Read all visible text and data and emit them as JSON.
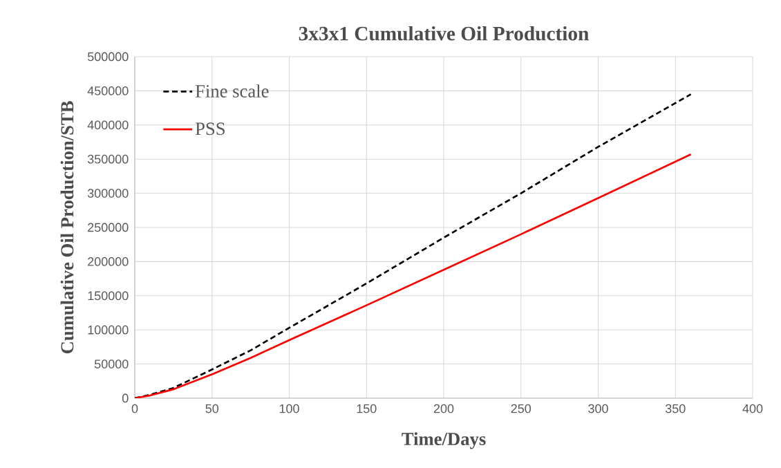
{
  "chart_data": {
    "type": "line",
    "title": "3x3x1 Cumulative Oil Production",
    "xlabel": "Time/Days",
    "ylabel": "Cumulative Oil Production/STB",
    "xlim": [
      0,
      400
    ],
    "xticks": [
      0,
      50,
      100,
      150,
      200,
      250,
      300,
      350,
      400
    ],
    "ylim": [
      0,
      500000
    ],
    "yticks": [
      0,
      50000,
      100000,
      150000,
      200000,
      250000,
      300000,
      350000,
      400000,
      450000,
      500000
    ],
    "grid": true,
    "legend": "top left",
    "marker": "none",
    "series": [
      {
        "name": "Fine scale",
        "color": "#000000",
        "line_style": "dashed",
        "x": [
          0,
          10,
          25,
          50,
          75,
          100,
          150,
          200,
          250,
          300,
          360
        ],
        "values": [
          0,
          5000,
          15000,
          42000,
          70000,
          103000,
          168000,
          235000,
          300000,
          368000,
          445000
        ]
      },
      {
        "name": "PSS",
        "color": "#ff0000",
        "line_style": "solid",
        "x": [
          0,
          10,
          25,
          50,
          75,
          100,
          150,
          200,
          250,
          300,
          360
        ],
        "values": [
          0,
          4000,
          13000,
          35000,
          59000,
          85000,
          136000,
          188000,
          240000,
          293000,
          357000
        ]
      }
    ]
  }
}
